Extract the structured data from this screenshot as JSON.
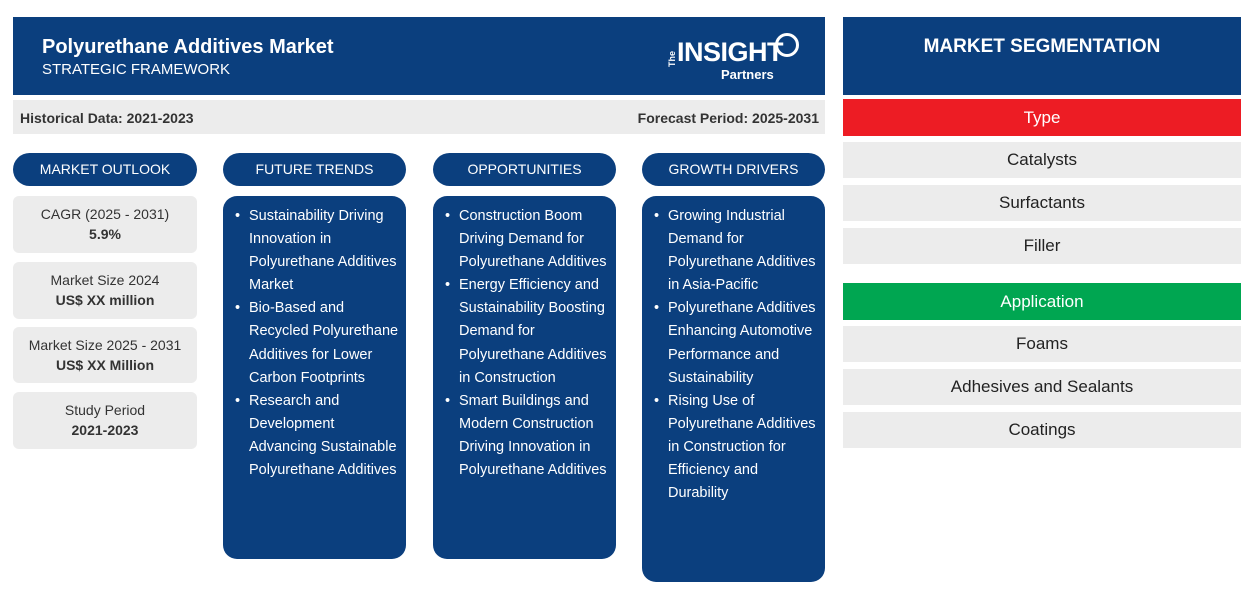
{
  "header": {
    "title": "Polyurethane Additives Market",
    "subtitle": "STRATEGIC FRAMEWORK",
    "logo": {
      "the": "The",
      "insight": "INSIGHT",
      "partners": "Partners"
    }
  },
  "subheader": {
    "historical": "Historical Data: 2021-2023",
    "forecast": "Forecast Period: 2025-2031"
  },
  "columns": {
    "market_outlook": "MARKET OUTLOOK",
    "future_trends": "FUTURE TRENDS",
    "opportunities": "OPPORTUNITIES",
    "growth_drivers": "GROWTH DRIVERS"
  },
  "outlook": [
    {
      "label": "CAGR (2025 - 2031)",
      "value": "5.9%"
    },
    {
      "label": "Market Size 2024",
      "value": "US$ XX million"
    },
    {
      "label": "Market Size 2025 - 2031",
      "value": "US$ XX Million"
    },
    {
      "label": "Study Period",
      "value": "2021-2023"
    }
  ],
  "future_trends": [
    "Sustainability Driving Innovation in Polyurethane Additives Market",
    "Bio-Based and Recycled Polyurethane Additives for Lower Carbon Footprints",
    "Research and Development Advancing Sustainable Polyurethane Additives"
  ],
  "opportunities": [
    "Construction Boom Driving Demand for Polyurethane Additives",
    "Energy Efficiency and Sustainability Boosting Demand for Polyurethane Additives in Construction",
    "Smart Buildings and Modern Construction Driving Innovation in Polyurethane Additives"
  ],
  "growth_drivers": [
    "Growing Industrial Demand for Polyurethane Additives in Asia-Pacific",
    "Polyurethane Additives Enhancing Automotive Performance and Sustainability",
    "Rising Use of Polyurethane Additives in Construction for Efficiency and Durability"
  ],
  "segmentation": {
    "title": "MARKET SEGMENTATION",
    "type": {
      "label": "Type",
      "color": "#ed1c24",
      "items": [
        "Catalysts",
        "Surfactants",
        "Filler"
      ]
    },
    "application": {
      "label": "Application",
      "color": "#00a651",
      "items": [
        "Foams",
        "Adhesives and Sealants",
        "Coatings"
      ]
    }
  },
  "colors": {
    "navy": "#0b3f7e",
    "light_gray": "#ececec"
  }
}
